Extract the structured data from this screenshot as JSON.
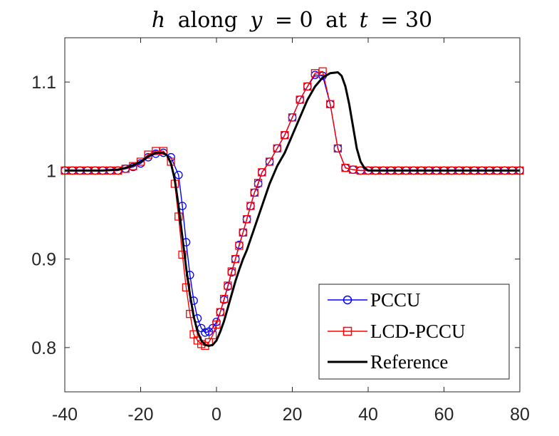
{
  "chart_data": {
    "type": "line",
    "title": "h along y = 0 at t = 30",
    "title_parts": {
      "var": "h",
      "along": "along",
      "cond_var": "y",
      "eq1": "= 0",
      "at": "at",
      "time_var": "t",
      "eq2": "= 30"
    },
    "xlabel": "",
    "ylabel": "",
    "xlim": [
      -40,
      80
    ],
    "ylim": [
      0.75,
      1.15
    ],
    "x_ticks": [
      -40,
      -20,
      0,
      20,
      40,
      60,
      80
    ],
    "x_tick_labels": [
      "-40",
      "-20",
      "0",
      "20",
      "40",
      "60",
      "80"
    ],
    "y_ticks": [
      0.8,
      0.9,
      1.0,
      1.1
    ],
    "y_tick_labels": [
      "0.8",
      "0.9",
      "1",
      "1.1"
    ],
    "grid": false,
    "legend_position": "bottom-right",
    "colors": {
      "pccu": "#0000ff",
      "lcd": "#ff0000",
      "reference": "#000000",
      "axis": "#262626"
    },
    "series": [
      {
        "name": "PCCU",
        "color": "#0000ff",
        "marker": "circle",
        "x": [
          -40,
          -38,
          -36,
          -34,
          -32,
          -30,
          -28,
          -26,
          -24,
          -22,
          -20,
          -18,
          -16,
          -14,
          -12,
          -10,
          -9,
          -8,
          -7,
          -6,
          -5,
          -4,
          -3,
          -2,
          -1,
          0,
          1,
          2,
          3,
          4,
          5,
          6,
          7,
          8,
          9,
          10,
          11,
          12,
          14,
          16,
          18,
          20,
          22,
          24,
          26,
          28,
          30,
          32,
          34,
          36,
          38,
          40,
          42,
          44,
          46,
          48,
          50,
          52,
          54,
          56,
          58,
          60,
          62,
          64,
          66,
          68,
          70,
          72,
          74,
          76,
          78,
          80
        ],
        "y": [
          1.0,
          1.0,
          1.0,
          1.0,
          1.0,
          1.0,
          1.0,
          1.0,
          1.002,
          1.004,
          1.008,
          1.015,
          1.019,
          1.02,
          1.015,
          0.995,
          0.96,
          0.919,
          0.882,
          0.853,
          0.833,
          0.822,
          0.817,
          0.818,
          0.822,
          0.829,
          0.84,
          0.854,
          0.869,
          0.885,
          0.9,
          0.916,
          0.93,
          0.945,
          0.96,
          0.975,
          0.985,
          0.998,
          1.01,
          1.025,
          1.04,
          1.06,
          1.08,
          1.095,
          1.108,
          1.107,
          1.075,
          1.025,
          1.003,
          1.001,
          1.0,
          1.0,
          1.0,
          1.0,
          1.0,
          1.0,
          1.0,
          1.0,
          1.0,
          1.0,
          1.0,
          1.0,
          1.0,
          1.0,
          1.0,
          1.0,
          1.0,
          1.0,
          1.0,
          1.0,
          1.0,
          1.0
        ]
      },
      {
        "name": "LCD-PCCU",
        "color": "#ff0000",
        "marker": "square",
        "x": [
          -40,
          -38,
          -36,
          -34,
          -32,
          -30,
          -28,
          -26,
          -24,
          -22,
          -20,
          -18,
          -16,
          -14,
          -12,
          -11,
          -10,
          -9,
          -8,
          -7,
          -6,
          -5,
          -4,
          -3,
          -2,
          -1,
          0,
          1,
          2,
          3,
          4,
          5,
          6,
          7,
          8,
          9,
          10,
          11,
          12,
          14,
          16,
          18,
          20,
          22,
          24,
          26,
          28,
          30,
          32,
          34,
          36,
          38,
          40,
          42,
          44,
          46,
          48,
          50,
          52,
          54,
          56,
          58,
          60,
          62,
          64,
          66,
          68,
          70,
          72,
          74,
          76,
          78,
          80
        ],
        "y": [
          1.0,
          1.0,
          1.0,
          1.0,
          1.0,
          1.0,
          1.0,
          1.0,
          1.002,
          1.005,
          1.01,
          1.018,
          1.022,
          1.022,
          1.01,
          0.985,
          0.948,
          0.905,
          0.868,
          0.838,
          0.815,
          0.808,
          0.804,
          0.802,
          0.806,
          0.814,
          0.826,
          0.84,
          0.855,
          0.87,
          0.886,
          0.9,
          0.915,
          0.93,
          0.945,
          0.96,
          0.975,
          0.986,
          0.998,
          1.01,
          1.025,
          1.04,
          1.06,
          1.08,
          1.095,
          1.11,
          1.112,
          1.075,
          1.025,
          1.003,
          1.001,
          1.0,
          1.0,
          1.0,
          1.0,
          1.0,
          1.0,
          1.0,
          1.0,
          1.0,
          1.0,
          1.0,
          1.0,
          1.0,
          1.0,
          1.0,
          1.0,
          1.0,
          1.0,
          1.0,
          1.0,
          1.0,
          1.0
        ]
      },
      {
        "name": "Reference",
        "color": "#000000",
        "marker": "none",
        "x": [
          -40,
          -30,
          -26,
          -24,
          -22,
          -20,
          -18,
          -16,
          -14,
          -13,
          -12,
          -11,
          -10,
          -9,
          -8,
          -7,
          -6,
          -5,
          -4,
          -3,
          -2,
          -1,
          0,
          1,
          2,
          3,
          4,
          5,
          6,
          7,
          8,
          10,
          12,
          14,
          16,
          18,
          20,
          22,
          24,
          26,
          28,
          30,
          32,
          33,
          34,
          35,
          36,
          37,
          38,
          39,
          40,
          42,
          44,
          50,
          60,
          70,
          80
        ],
        "y": [
          1.0,
          1.0,
          1.001,
          1.003,
          1.006,
          1.01,
          1.016,
          1.02,
          1.02,
          1.017,
          1.008,
          0.99,
          0.96,
          0.925,
          0.89,
          0.86,
          0.835,
          0.818,
          0.808,
          0.803,
          0.802,
          0.803,
          0.808,
          0.818,
          0.83,
          0.845,
          0.86,
          0.875,
          0.888,
          0.9,
          0.91,
          0.935,
          0.96,
          0.985,
          1.005,
          1.02,
          1.04,
          1.06,
          1.08,
          1.095,
          1.105,
          1.11,
          1.111,
          1.107,
          1.095,
          1.075,
          1.05,
          1.025,
          1.01,
          1.003,
          1.0,
          1.0,
          1.0,
          1.0,
          1.0,
          1.0,
          1.0
        ]
      }
    ]
  }
}
